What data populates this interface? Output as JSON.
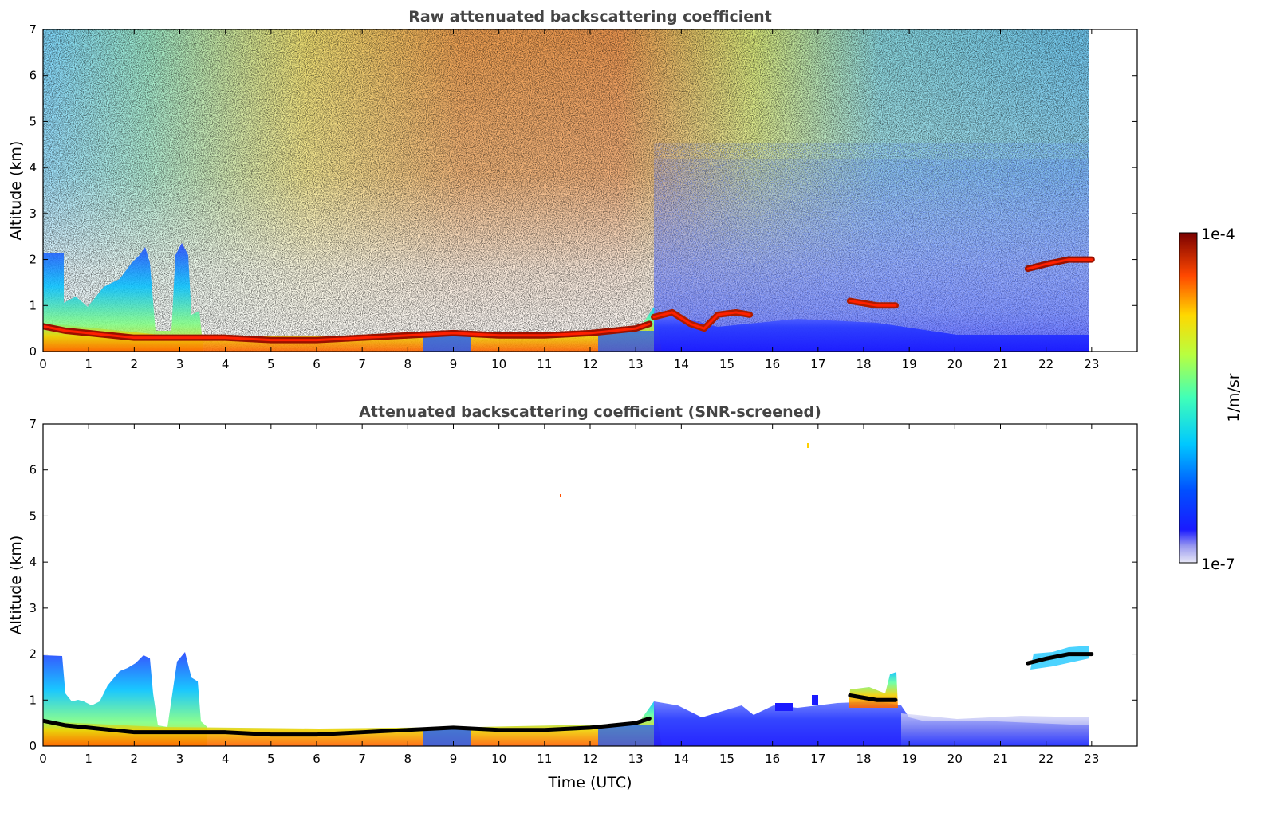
{
  "figure": {
    "shared_xlabel": "Time (UTC)",
    "colorbar": {
      "label": "1/m/sr",
      "max_label": "1e-4",
      "min_label": "1e-7",
      "range": [
        1e-07,
        0.0001
      ],
      "scale": "log",
      "colormap": "jet"
    }
  },
  "chart_data": [
    {
      "type": "heatmap",
      "title": "Raw attenuated backscattering coefficient",
      "xlabel": "",
      "ylabel": "Altitude (km)",
      "xlim": [
        0,
        24
      ],
      "ylim": [
        0,
        7
      ],
      "xticks": [
        "0",
        "1",
        "2",
        "3",
        "4",
        "5",
        "6",
        "7",
        "8",
        "9",
        "10",
        "11",
        "12",
        "13",
        "14",
        "15",
        "16",
        "17",
        "18",
        "19",
        "20",
        "21",
        "22",
        "23"
      ],
      "yticks": [
        "0",
        "1",
        "2",
        "3",
        "4",
        "5",
        "6",
        "7"
      ],
      "data_extent_x": [
        0,
        23
      ],
      "layers": [
        {
          "x": [
            0,
            0.5,
            1,
            2,
            3,
            4,
            5,
            6,
            7,
            8,
            9,
            10,
            11,
            12,
            13,
            13.3
          ],
          "y": [
            0.55,
            0.45,
            0.4,
            0.3,
            0.3,
            0.3,
            0.25,
            0.25,
            0.3,
            0.35,
            0.4,
            0.35,
            0.35,
            0.4,
            0.5,
            0.6
          ],
          "level": 0.97
        },
        {
          "x": [
            13.4,
            13.8,
            14.2,
            14.5,
            14.8,
            15.2,
            15.5
          ],
          "y": [
            0.75,
            0.85,
            0.6,
            0.5,
            0.8,
            0.85,
            0.8
          ],
          "level": 0.95
        },
        {
          "x": [
            17.7,
            18.0,
            18.3,
            18.7
          ],
          "y": [
            1.1,
            1.05,
            1.0,
            1.0
          ],
          "level": 0.95
        },
        {
          "x": [
            21.6,
            22.0,
            22.5,
            23.0
          ],
          "y": [
            1.8,
            1.9,
            2.0,
            2.0
          ],
          "level": 0.97
        }
      ]
    },
    {
      "type": "heatmap",
      "title": "Attenuated backscattering coefficient (SNR-screened)",
      "xlabel": "Time (UTC)",
      "ylabel": "Altitude (km)",
      "xlim": [
        0,
        24
      ],
      "ylim": [
        0,
        7
      ],
      "xticks": [
        "0",
        "1",
        "2",
        "3",
        "4",
        "5",
        "6",
        "7",
        "8",
        "9",
        "10",
        "11",
        "12",
        "13",
        "14",
        "15",
        "16",
        "17",
        "18",
        "19",
        "20",
        "21",
        "22",
        "23"
      ],
      "yticks": [
        "0",
        "1",
        "2",
        "3",
        "4",
        "5",
        "6",
        "7"
      ],
      "data_extent_x": [
        0,
        23
      ],
      "layers": [
        {
          "x": [
            0,
            0.5,
            1,
            2,
            3,
            4,
            5,
            6,
            7,
            8,
            9,
            10,
            11,
            12,
            13,
            13.3
          ],
          "y": [
            0.55,
            0.45,
            0.4,
            0.3,
            0.3,
            0.3,
            0.25,
            0.25,
            0.3,
            0.35,
            0.4,
            0.35,
            0.35,
            0.4,
            0.5,
            0.6
          ],
          "level": 0.0
        },
        {
          "x": [
            17.7,
            18.0,
            18.3,
            18.7
          ],
          "y": [
            1.1,
            1.05,
            1.0,
            1.0
          ],
          "level": 0.0
        },
        {
          "x": [
            21.6,
            22.0,
            22.5,
            23.0
          ],
          "y": [
            1.8,
            1.9,
            2.0,
            2.0
          ],
          "level": 0.0
        }
      ]
    }
  ]
}
